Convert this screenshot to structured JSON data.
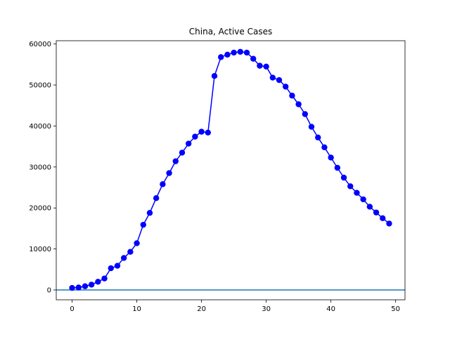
{
  "chart_data": {
    "type": "line",
    "title": "China, Active Cases",
    "xlabel": "",
    "ylabel": "",
    "xlim": [
      -2.45,
      51.45
    ],
    "ylim": [
      -2400,
      60800
    ],
    "xticks": [
      0,
      10,
      20,
      30,
      40,
      50
    ],
    "yticks": [
      0,
      10000,
      20000,
      30000,
      40000,
      50000,
      60000
    ],
    "grid": false,
    "series": [
      {
        "color": "#0000ff",
        "marker": "circle",
        "x": [
          0,
          1,
          2,
          3,
          4,
          5,
          6,
          7,
          8,
          9,
          10,
          11,
          12,
          13,
          14,
          15,
          16,
          17,
          18,
          19,
          20,
          21,
          22,
          23,
          24,
          25,
          26,
          27,
          28,
          29,
          30,
          31,
          32,
          33,
          34,
          35,
          36,
          37,
          38,
          39,
          40,
          41,
          42,
          43,
          44,
          45,
          46,
          47,
          48,
          49
        ],
        "values": [
          500,
          600,
          900,
          1300,
          2000,
          2800,
          5300,
          5900,
          7800,
          9300,
          11400,
          15900,
          18800,
          22400,
          25800,
          28500,
          31400,
          33500,
          35700,
          37400,
          38600,
          38400,
          52200,
          56800,
          57400,
          57900,
          58100,
          57900,
          56400,
          54700,
          54500,
          51800,
          51200,
          49600,
          47400,
          45300,
          42900,
          39800,
          37200,
          34800,
          32300,
          29800,
          27400,
          25300,
          23700,
          22100,
          20300,
          18900,
          17500,
          16200
        ]
      }
    ],
    "reference_line": {
      "y": 0,
      "color": "#1f77b4"
    }
  }
}
